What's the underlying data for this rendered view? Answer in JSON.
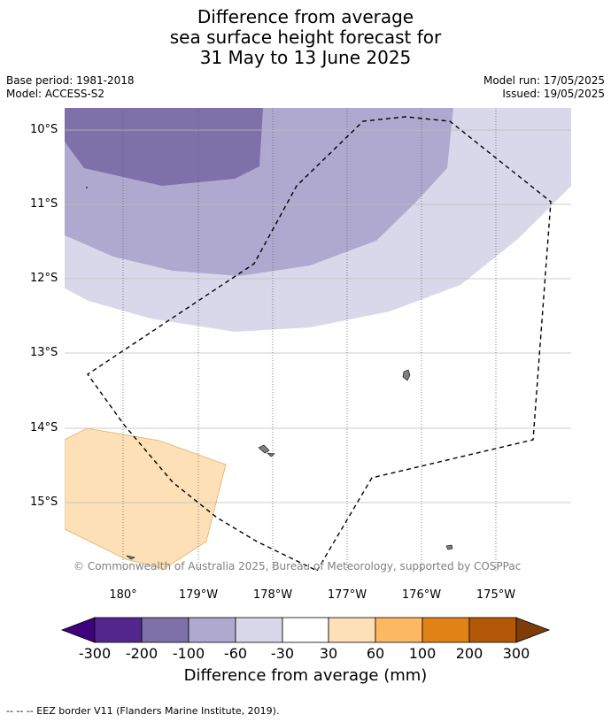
{
  "title": {
    "line1": "Difference from average",
    "line2": "sea surface height forecast for",
    "line3": "31 May to 13 June 2025"
  },
  "meta": {
    "base_period": "Base period: 1981-2018",
    "model": "Model: ACCESS-S2",
    "model_run": "Model run: 17/05/2025",
    "issued": "Issued: 19/05/2025"
  },
  "axes": {
    "y_ticks": [
      "10°S",
      "11°S",
      "12°S",
      "13°S",
      "14°S",
      "15°S"
    ],
    "x_ticks": [
      "180°",
      "179°W",
      "178°W",
      "177°W",
      "176°W",
      "175°W"
    ]
  },
  "colors": {
    "anom_lt_-300": "#3f007d",
    "anom_-300_-200": "#54278f",
    "anom_-200_-100": "#7e70a9",
    "anom_-100_-60": "#afa8cf",
    "anom_-60_-30": "#d8d8ea",
    "anom_-30_30": "#ffffff",
    "anom_30_60": "#fde0b6",
    "anom_60_100": "#fdb863",
    "anom_100_200": "#e08214",
    "anom_200_300": "#b35806",
    "anom_gt_300": "#7f3b08",
    "land": "#808080"
  },
  "colorbar": {
    "labels": [
      "-300",
      "-200",
      "-100",
      "-60",
      "-30",
      "30",
      "60",
      "100",
      "200",
      "300"
    ],
    "title": "Difference from average (mm)"
  },
  "credit": "© Commonwealth of Australia 2025, Bureau of Meteorology, supported by COSPPac",
  "footer": "-- -- -- EEZ border V11 (Flanders Marine Institute, 2019)."
}
